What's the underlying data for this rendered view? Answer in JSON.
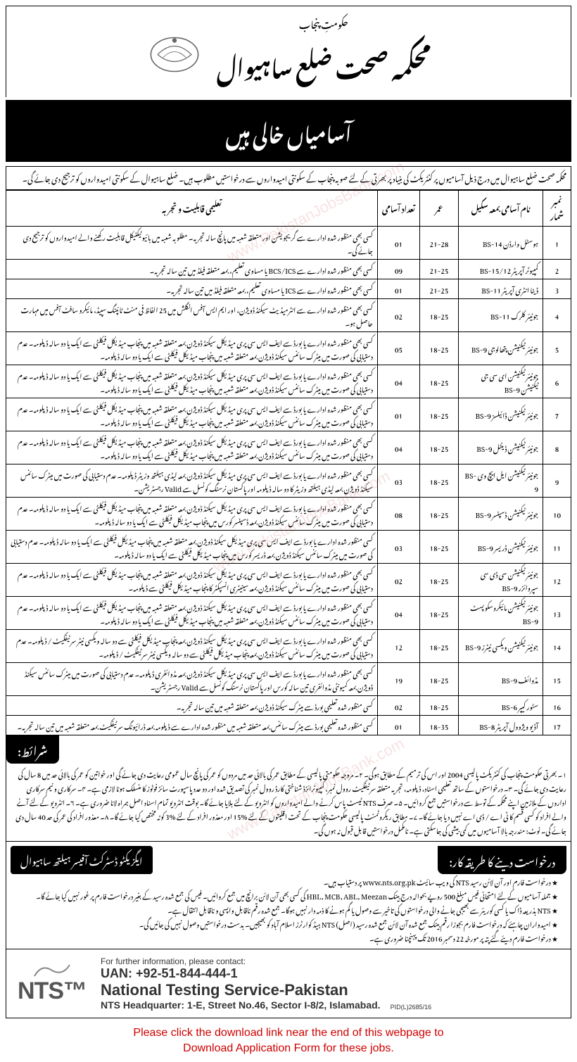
{
  "header": {
    "govt_line": "حکومتِ پنجاب",
    "dept_title": "محکمہ صحت ضلع ساہیوال",
    "banner": "آسامیاں خالی ہیں"
  },
  "intro": "محکمہ صحت ضلع ساہیوال میں درج ذیل آسامیوں پر کنٹریکٹ کی بنیاد پر بھرتی کے لئے صوبہ پنجاب کے سکونتی امیدواروں سے درخواستیں مطلوب ہیں۔ ضلع ساہیوال کے سکونتی امیدواروں کو ترجیح دی جائے گی۔",
  "table": {
    "headers": {
      "sr": "نمبر شمار",
      "post": "نام آسامی بمعہ سکیل",
      "age": "عمر",
      "count": "تعداد آسامی",
      "qual": "تعلیمی قابلیت و تجربہ"
    },
    "rows": [
      {
        "sr": "1",
        "post": "ہوسٹل وارڈن BS-14",
        "age": "21-28",
        "count": "01",
        "qual": "کسی بھی منظور شدہ ادارے سے گریجویشن اور متعلقہ شعبہ میں پانچ سالہ تجربہ۔ مطلوبہ شعبہ میں بائیوٹیکنیکل قابلیت رکھنے والے امیدواروں کو ترجیح دی جائے گی۔"
      },
      {
        "sr": "2",
        "post": "کمپیوٹر آپریٹر BS-15/12",
        "age": "21-25",
        "count": "09",
        "qual": "کسی بھی منظور شدہ ادارے سے BCS/ICS یا مساوی تعلیم، بمعہ متعلقہ فیلڈ میں تین سالہ تجربہ۔"
      },
      {
        "sr": "3",
        "post": "ڈیٹا انٹری آپریٹر BS-11",
        "age": "21-25",
        "count": "01",
        "qual": "کسی بھی منظور شدہ ادارے سے ICS یا مساوی تعلیم، بمعہ متعلقہ فیلڈ میں تین سالہ تجربہ۔"
      },
      {
        "sr": "4",
        "post": "جونیئر کلرک BS-11",
        "age": "18-25",
        "count": "02",
        "qual": "کسی بھی منظور شدہ ادارے سے انٹرمیڈیٹ سیکنڈ ڈویژن، اور ایم ایس آفس انگلش میں 25 الفاظ فی منٹ ٹائپنگ سپیڈ، مائیکرو سافٹ آفس میں مہارت حاصل ہو۔"
      },
      {
        "sr": "5",
        "post": "جونیئر ٹیکنیشن پتھالوجی BS-9",
        "age": "18-25",
        "count": "05",
        "qual": "کسی بھی منظور شدہ ادارے یا بورڈ سے ایف ایس سی پری میڈیکل سیکنڈ ڈویژن بمعہ متعلقہ شعبہ میں پنجاب میڈیکل فیکلٹی سے ایک یا دو سالہ ڈپلومہ۔ عدم دستیابی کی صورت میں میٹرک سائنس سیکنڈ ڈویژن بمعہ متعلقہ شعبہ میں پنجاب میڈیکل فیکلٹی سے ایک یا دو سالہ ڈپلومہ۔"
      },
      {
        "sr": "6",
        "post": "جونیئر ٹیکنیشن ای سی جی ٹیکنیشن BS-9",
        "age": "18-25",
        "count": "04",
        "qual": "کسی بھی منظور شدہ ادارے یا بورڈ سے ایف ایس سی پری میڈیکل سیکنڈ ڈویژن بمعہ متعلقہ شعبہ میں پنجاب میڈیکل فیکلٹی سے ایک یا دو سالہ ڈپلومہ۔ عدم دستیابی کی صورت میں میٹرک سائنس سیکنڈ ڈویژن بمعہ متعلقہ شعبہ میں پنجاب میڈیکل فیکلٹی سے ایک یا دو سالہ ڈپلومہ۔"
      },
      {
        "sr": "7",
        "post": "جونیئر ٹیکنیشن ڈائیلسز BS-9",
        "age": "18-25",
        "count": "01",
        "qual": "کسی بھی منظور شدہ ادارے یا بورڈ سے ایف ایس سی پری میڈیکل سیکنڈ ڈویژن بمعہ متعلقہ شعبہ میں پنجاب میڈیکل فیکلٹی سے ایک یا دو سالہ ڈپلومہ۔ عدم دستیابی کی صورت میں میٹرک سائنس سیکنڈ ڈویژن بمعہ متعلقہ شعبہ میں پنجاب میڈیکل فیکلٹی سے ایک یا دو سالہ ڈپلومہ۔"
      },
      {
        "sr": "8",
        "post": "جونیئر ٹیکنیشن ڈینٹل BS-9",
        "age": "18-25",
        "count": "04",
        "qual": "کسی بھی منظور شدہ ادارے یا بورڈ سے ایف ایس سی پری میڈیکل سیکنڈ ڈویژن بمعہ متعلقہ شعبہ میں پنجاب میڈیکل فیکلٹی سے ایک یا دو سالہ ڈپلومہ۔ عدم دستیابی کی صورت میں میٹرک سائنس سیکنڈ ڈویژن بمعہ متعلقہ شعبہ میں پنجاب میڈیکل فیکلٹی سے ایک یا دو سالہ ڈپلومہ۔"
      },
      {
        "sr": "9",
        "post": "جونیئر ٹیکنیشن ایل ایچ وی BS-9",
        "age": "18-25",
        "count": "03",
        "qual": "کسی بھی منظور شدہ ادارے یا بورڈ سے ایف ایس سی پری میڈیکل سیکنڈ ڈویژن بمعہ لیڈی ہیلتھ وزیٹر ڈپلومہ۔ عدم دستیابی کی صورت میں میٹرک سائنس سیکنڈ ڈویژن بمعہ لیڈی ہیلتھ وزیٹر کا دو سالہ ڈپلومہ اور پاکستان نرسنگ کونسل سے Valid رجسٹریشن۔"
      },
      {
        "sr": "10",
        "post": "جونیئر ٹیکنیشن ڈسپنسر BS-9",
        "age": "18-25",
        "count": "08",
        "qual": "کسی بھی منظور شدہ ادارے یا بورڈ سے ایف ایس سی پری میڈیکل سیکنڈ ڈویژن بمعہ متعلقہ شعبہ میں پنجاب میڈیکل فیکلٹی سے ایک یا دو سالہ ڈپلومہ۔ عدم دستیابی کی صورت میں میٹرک سائنس سیکنڈ ڈویژن بمعہ ڈسپنسر کورس میں پنجاب میڈیکل فیکلٹی سے ایک یا دو سالہ ڈپلومہ۔"
      },
      {
        "sr": "11",
        "post": "جونیئر ٹیکنیشن ڈریسر BS-9",
        "age": "18-25",
        "count": "03",
        "qual": "کسی منظور شدہ ادارے یا بورڈ سے ایف ایس سی پری میڈیکل سیکنڈ ڈویژن بمعہ متعلقہ شعبہ میں پنجاب میڈیکل فیکلٹی سے ایک یا دو سالہ ڈپلومہ۔ عدم دستیابی کی صورت میں میٹرک سائنس سیکنڈ ڈویژن بمعہ ڈریسر کورس میں پنجاب میڈیکل فیکلٹی سے ایک یا دو سالہ ڈپلومہ۔"
      },
      {
        "sr": "12",
        "post": "جونیئر ٹیکنیشن سی ڈی سی سپروائزر BS-9",
        "age": "18-25",
        "count": "02",
        "qual": "کسی بھی منظور شدہ ادارے یا بورڈ سے ایف ایس سی پری میڈیکل سیکنڈ ڈویژن بمعہ متعلقہ شعبہ میں پنجاب میڈیکل فیکلٹی سے ایک یا دو سالہ ڈپلومہ۔ عدم دستیابی کی صورت میں میٹرک سائنس سیکنڈ ڈویژن بمعہ سینیٹری انسپکٹر کا پنجاب میڈیکل فیکلٹی سے ڈپلومہ۔"
      },
      {
        "sr": "13",
        "post": "جونیئر ٹیکنیشن مائیکروسکوپسٹ BS-9",
        "age": "18-25",
        "count": "04",
        "qual": "کسی بھی منظور شدہ ادارے یا بورڈ سے ایف ایس سی پری میڈیکل سیکنڈ ڈویژن بمعہ متعلقہ شعبہ میں پنجاب میڈیکل فیکلٹی سے ایک یا دو سالہ ڈپلومہ۔ عدم دستیابی کی صورت میں میٹرک سائنس سیکنڈ ڈویژن بمعہ متعلقہ شعبہ میں پنجاب میڈیکل فیکلٹی سے ایک یا دو سالہ ڈپلومہ۔"
      },
      {
        "sr": "14",
        "post": "جونیئر ٹیکنیشن ویکسی نیٹرز BS-9",
        "age": "18-25",
        "count": "12",
        "qual": "کسی بھی منظور شدہ ادارے یا بورڈ سے ایف ایس سی پری میڈیکل سیکنڈ ڈویژن بمعہ پنجاب میڈیکل فیکلٹی سے دو سالہ ویکسی نیٹر سرٹیفکیٹ / ڈپلومہ۔ عدم دستیابی کی صورت میں میٹرک سائنس سیکنڈ ڈویژن بمعہ پنجاب میڈیکل فیکلٹی سے دو سالہ ویکسی نیٹر سرٹیفکیٹ / ڈپلومہ۔"
      },
      {
        "sr": "15",
        "post": "مڈوائف BS-9",
        "age": "18-25",
        "count": "19",
        "qual": "کسی بھی منظور شدہ ادارے یا بورڈ سے ایف ایس سی پری میڈیکل سیکنڈ ڈویژن بمعہ مڈوائفری ڈپلومہ۔ عدم دستیابی کی صورت میں میٹرک سائنس سیکنڈ ڈویژن بمعہ کمیونٹی مڈوائفری تین سالہ کورس اور پاکستان نرسنگ کونسل سے Valid رجسٹریشن۔"
      },
      {
        "sr": "16",
        "post": "سٹور کیپر BS-6",
        "age": "18-25",
        "count": "02",
        "qual": "کسی منظور شدہ تعلیمی بورڈ سے میٹرک سیکنڈ ڈویژن بمعہ متعلقہ شعبہ میں تین سالہ تجربہ۔"
      },
      {
        "sr": "17",
        "post": "آڈیو ویژوول آپریٹر BS-8",
        "age": "18-35",
        "count": "01",
        "qual": "کسی منظور شدہ تعلیمی بورڈ سے میٹرک سائنس بمعہ متعلقہ شعبہ میں منظور شدہ ادارے سے ڈپلومہ بمعہ ڈرائیونگ سرٹیفکیٹ بمعہ متعلقہ شعبہ میں تین سالہ تجربہ۔"
      }
    ]
  },
  "conditions": {
    "label": "شرائط:",
    "text": "۱۔ بھرتی حکومت پنجاب کی کنٹریکٹ پالیسی 2004 اور اس کی ترمیم کے مطابق ہوگی۔ ۲۔ مروجہ حکومتی پالیسی کے مطابق عمر کی بالائی حد میں مردوں کو عمر کی پانچ سال عمومی رعایت دی جائے گی اور خواتین کو عمر کی بالائی حد میں 8 سال کی رعایت دی جائے گی۔ ۳۔ درخواستوں کے ساتھ تعلیمی اسناد، ڈپلومہ، تجربہ متعلقہ سرٹیفکیٹ روول نمبر، کمپیوٹرائزڈ شناختی کارڈ روول نمبر کی تصدیق شدہ اور دو عدد پاسپورٹ سائز فوٹوز کا منسلک ہونا لازمی ہے۔ ۴۔ سرکاری و نیم سرکاری اداروں کے ملازمین اپنے محکمہ کے توسط سے درخواستیں جمع کروائیں۔ ۵۔ صرف NTS ٹیسٹ پاس کرنے والے امیدواروں کو انٹرویو کے لئے بلایا جائے گا۔ بوقت انٹرویو تمام اسناد اصل ہمراہ لانا ضروری ہے۔ ۶۔ انٹرویو کے لئے آنے والے افراد کو کسی قسم کا ٹی اے / ڈی اے نہیں دیا جائے گا۔ ۷۔ مطابق ریکروٹمنٹ پالیسی حکومت پنجاب کے تحت اقلیتوں کے لئے %15 اور معذور افراد کے لئے %3 کوٹہ مختص کیا جائے گا۔ ۸۔ معذور افراد کی عمر کی حد 40 سال دی جائے گی۔ نوٹ: مندرجہ بالا آسامیوں میں کمی بیشی کی جاسکتی ہے۔ نامکمل درخواستیں قابل قبول نہ ہوں گی۔"
  },
  "officer": "ایگزیکٹو ڈسٹرکٹ آفیسر ہیلتھ ساہیوال",
  "apply": {
    "label": "درخواست دینے کا طریقہ کار:",
    "items": [
      "درخواست فارم اور آن لائن رسید NTS کی ویب سائیٹ www.nts.org.pk پر دستیاب ہیں۔",
      "جملہ آسامیوں کے لئے امتحانی فیس مبلغ 500 روپے بحوالہ درج بینک HBL, MCB, ABL, Meezan کی کسی بھی آن لائن برانچ میں جمع کروائیں۔ فیس کی جمع شدہ رسید کے بغیر درخواست فارم پر غور نہیں کیا جائے گا۔",
      "NTS بذریعہ ڈاک یا کسی کوریئر سے بھیجی جانے والی درخواستوں کی تاخیر سے وصول یا گم ہونے کا ذمہ دار نہیں ہوگا۔ جمع شدہ رقم ناقابل واپسی و ناقابل انتقال ہے۔",
      "امیدواران چاہئے کہ درخواست فارم بجوزا رقم بینک جمع شدہ آن لائن جمع شدہ رسید (اصل) NTS ہیڈ کوارٹرز اسلام آباد کو بھیجیں۔ بدست درخواستیں وصول نہیں کی جائیں گی۔",
      "درخواست فارم دیئے گئے پتہ پر مورخہ 22 دسمبر 2016 تک پہنچنا ضروری ہے۔"
    ]
  },
  "nts": {
    "logo": "NTS™",
    "contact_label": "For further information, please contact:",
    "uan": "UAN: +92-51-844-444-1",
    "name": "National Testing Service-Pakistan",
    "address": "NTS Headquarter: 1-E, Street No.46, Sector I-8/2, Islamabad."
  },
  "download_note": "Please click the download link near the end of this webpage to\nDownload Application Form for these jobs.",
  "pid": "PID(L)2685/16",
  "watermark": "www.PakistanJobsBank.com",
  "colors": {
    "banner_bg": "#000000",
    "banner_fg": "#ffffff",
    "border": "#000000",
    "download_fg": "#d00000",
    "nts_logo": "#555555",
    "watermark": "rgba(200,60,60,0.15)"
  }
}
